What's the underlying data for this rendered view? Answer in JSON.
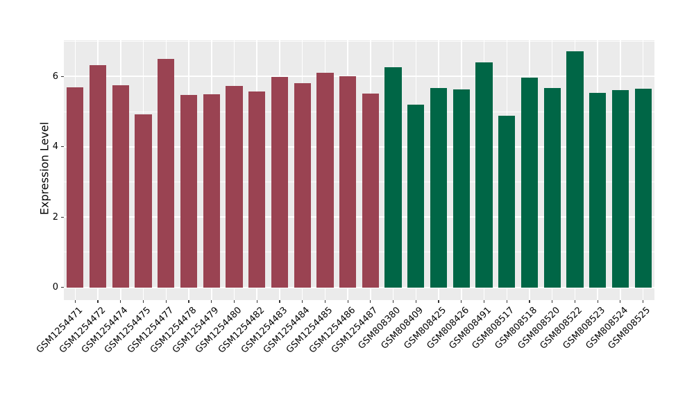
{
  "figure": {
    "background": "#FFFFFF",
    "panel_background": "#EBEBEB",
    "gridline_color": "#FFFFFF",
    "tick_color": "#333333",
    "text_color": "#000000"
  },
  "chart_data": {
    "type": "bar",
    "title": "",
    "xlabel": "",
    "ylabel": "Expression Level",
    "ylim": [
      -0.36,
      7.03
    ],
    "yticks": [
      0,
      2,
      4,
      6
    ],
    "minor_yticks": [
      1,
      3,
      5,
      7
    ],
    "grid": true,
    "legend_position": "none",
    "x_tick_rotation_deg": 45,
    "categories": [
      "GSM1254471",
      "GSM1254472",
      "GSM1254474",
      "GSM1254475",
      "GSM1254477",
      "GSM1254478",
      "GSM1254479",
      "GSM1254480",
      "GSM1254482",
      "GSM1254483",
      "GSM1254484",
      "GSM1254485",
      "GSM1254486",
      "GSM1254487",
      "GSM808380",
      "GSM808409",
      "GSM808425",
      "GSM808426",
      "GSM808491",
      "GSM808517",
      "GSM808518",
      "GSM808520",
      "GSM808522",
      "GSM808523",
      "GSM808524",
      "GSM808525"
    ],
    "values": [
      5.69,
      6.33,
      5.75,
      4.93,
      6.5,
      5.47,
      5.5,
      5.73,
      5.58,
      5.98,
      5.8,
      6.11,
      6.01,
      5.52,
      6.27,
      5.19,
      5.67,
      5.63,
      6.4,
      4.89,
      5.97,
      5.68,
      6.72,
      5.54,
      5.62,
      5.66
    ],
    "groups": [
      "maroon",
      "maroon",
      "maroon",
      "maroon",
      "maroon",
      "maroon",
      "maroon",
      "maroon",
      "maroon",
      "maroon",
      "maroon",
      "maroon",
      "maroon",
      "maroon",
      "green",
      "green",
      "green",
      "green",
      "green",
      "green",
      "green",
      "green",
      "green",
      "green",
      "green",
      "green"
    ],
    "group_colors": {
      "maroon": "#9A4352",
      "green": "#006646"
    }
  }
}
